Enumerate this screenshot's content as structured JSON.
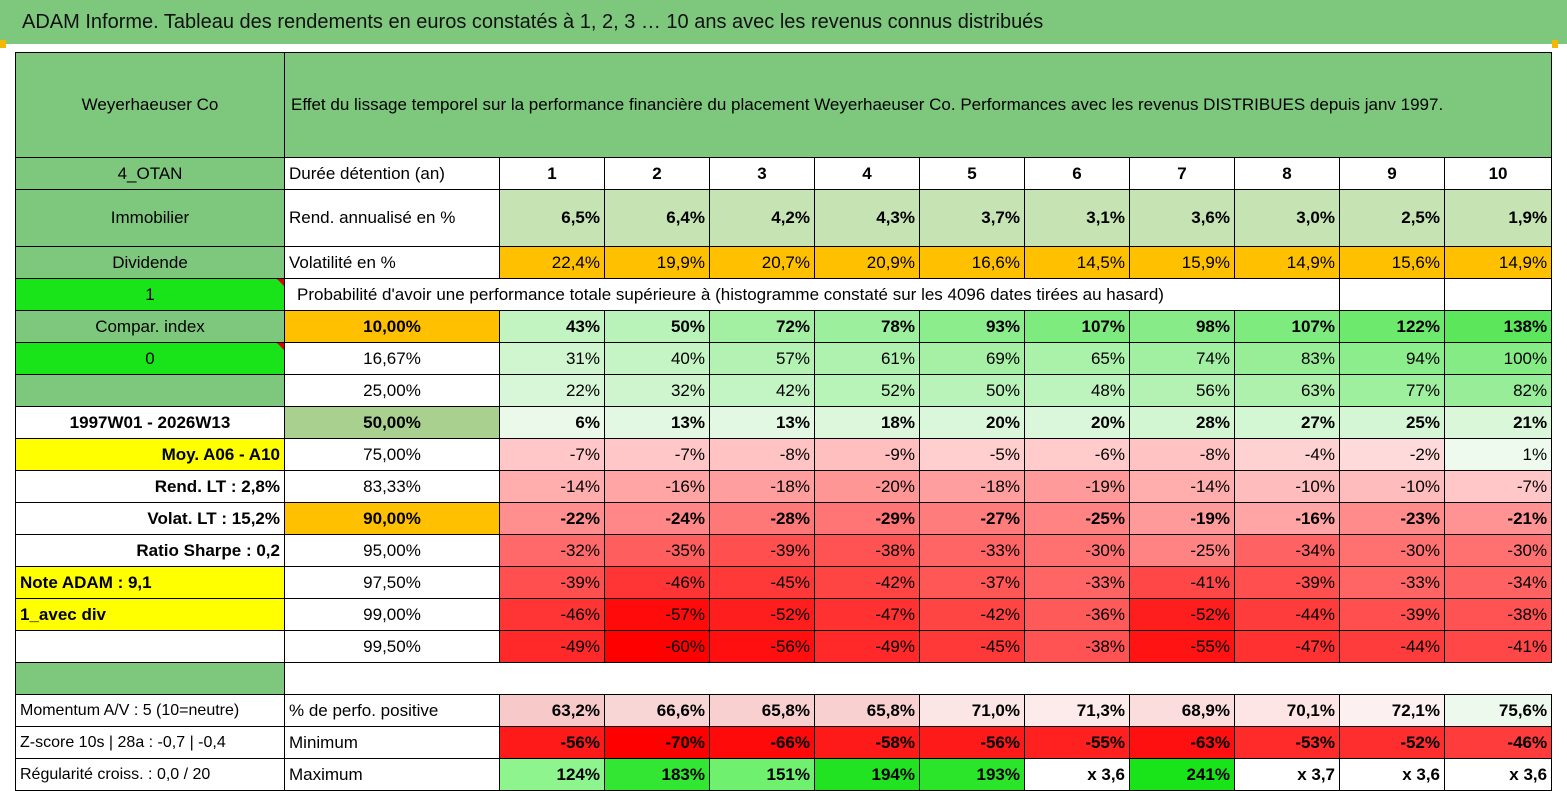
{
  "title": "ADAM Informe. Tableau des rendements en euros constatés à 1, 2, 3 … 10 ans avec les revenus connus distribués",
  "header": {
    "name": "Weyerhaeuser Co",
    "description": "Effet du lissage temporel sur la performance financière du placement Weyerhaeuser Co. Performances avec les revenus DISTRIBUES depuis janv 1997."
  },
  "sidebar": {
    "code": "4_OTAN",
    "sector": "Immobilier",
    "income_type": "Dividende",
    "selector_1": "1",
    "compar_index": "Compar. index",
    "selector_2": "0",
    "period": "1997W01 - 2026W13",
    "avg": "Moy. A06 - A10",
    "rend_lt": "Rend. LT :   2,8%",
    "volat_lt": "Volat. LT :   15,2%",
    "sharpe": "Ratio Sharpe :    0,2",
    "note": "Note ADAM : 9,1",
    "avec_div": "1_avec div",
    "momentum": "Momentum A/V : 5 (10=neutre)",
    "zscore": "Z-score 10s | 28a : -0,7 | -0,4",
    "regularite": "Régularité croiss. : 0,0 / 20"
  },
  "labels": {
    "duree": "Durée détention (an)",
    "rend": "Rend. annualisé en %",
    "vol": "Volatilité en %",
    "proba": "Probabilité d'avoir une performance totale supérieure à (histogramme constaté sur les 4096 dates tirées au hasard)",
    "positive": "% de perfo. positive",
    "minimum": "Minimum",
    "maximum": "Maximum"
  },
  "years": [
    "1",
    "2",
    "3",
    "4",
    "5",
    "6",
    "7",
    "8",
    "9",
    "10"
  ],
  "rend": [
    "6,5%",
    "6,4%",
    "4,2%",
    "4,3%",
    "3,7%",
    "3,1%",
    "3,6%",
    "3,0%",
    "2,5%",
    "1,9%"
  ],
  "vol": [
    "22,4%",
    "19,9%",
    "20,7%",
    "20,9%",
    "16,6%",
    "14,5%",
    "15,9%",
    "14,9%",
    "15,6%",
    "14,9%"
  ],
  "quantiles": [
    {
      "label": "10,00%",
      "values": [
        "43%",
        "50%",
        "72%",
        "78%",
        "93%",
        "107%",
        "98%",
        "107%",
        "122%",
        "138%"
      ]
    },
    {
      "label": "16,67%",
      "values": [
        "31%",
        "40%",
        "57%",
        "61%",
        "69%",
        "65%",
        "74%",
        "83%",
        "94%",
        "100%"
      ]
    },
    {
      "label": "25,00%",
      "values": [
        "22%",
        "32%",
        "42%",
        "52%",
        "50%",
        "48%",
        "56%",
        "63%",
        "77%",
        "82%"
      ]
    },
    {
      "label": "50,00%",
      "values": [
        "6%",
        "13%",
        "13%",
        "18%",
        "20%",
        "20%",
        "28%",
        "27%",
        "25%",
        "21%"
      ]
    },
    {
      "label": "75,00%",
      "values": [
        "-7%",
        "-7%",
        "-8%",
        "-9%",
        "-5%",
        "-6%",
        "-8%",
        "-4%",
        "-2%",
        "1%"
      ]
    },
    {
      "label": "83,33%",
      "values": [
        "-14%",
        "-16%",
        "-18%",
        "-20%",
        "-18%",
        "-19%",
        "-14%",
        "-10%",
        "-10%",
        "-7%"
      ]
    },
    {
      "label": "90,00%",
      "values": [
        "-22%",
        "-24%",
        "-28%",
        "-29%",
        "-27%",
        "-25%",
        "-19%",
        "-16%",
        "-23%",
        "-21%"
      ]
    },
    {
      "label": "95,00%",
      "values": [
        "-32%",
        "-35%",
        "-39%",
        "-38%",
        "-33%",
        "-30%",
        "-25%",
        "-34%",
        "-30%",
        "-30%"
      ]
    },
    {
      "label": "97,50%",
      "values": [
        "-39%",
        "-46%",
        "-45%",
        "-42%",
        "-37%",
        "-33%",
        "-41%",
        "-39%",
        "-33%",
        "-34%"
      ]
    },
    {
      "label": "99,00%",
      "values": [
        "-46%",
        "-57%",
        "-52%",
        "-47%",
        "-42%",
        "-36%",
        "-52%",
        "-44%",
        "-39%",
        "-38%"
      ]
    },
    {
      "label": "99,50%",
      "values": [
        "-49%",
        "-60%",
        "-56%",
        "-49%",
        "-45%",
        "-38%",
        "-55%",
        "-47%",
        "-44%",
        "-41%"
      ]
    }
  ],
  "positive": [
    "63,2%",
    "66,6%",
    "65,8%",
    "65,8%",
    "71,0%",
    "71,3%",
    "68,9%",
    "70,1%",
    "72,1%",
    "75,6%"
  ],
  "minimum": [
    "-56%",
    "-70%",
    "-66%",
    "-58%",
    "-56%",
    "-55%",
    "-63%",
    "-53%",
    "-52%",
    "-46%"
  ],
  "maximum": [
    "124%",
    "183%",
    "151%",
    "194%",
    "193%",
    "x 3,6",
    "241%",
    "x 3,7",
    "x 3,6",
    "x 3,6"
  ],
  "colors": {
    "header_green": "#7ec87e",
    "light_green": "#c6e3b4",
    "orange": "#ffc000",
    "bright_green": "#19e319",
    "yellow": "#ffff00",
    "red_text": "#e00000"
  }
}
